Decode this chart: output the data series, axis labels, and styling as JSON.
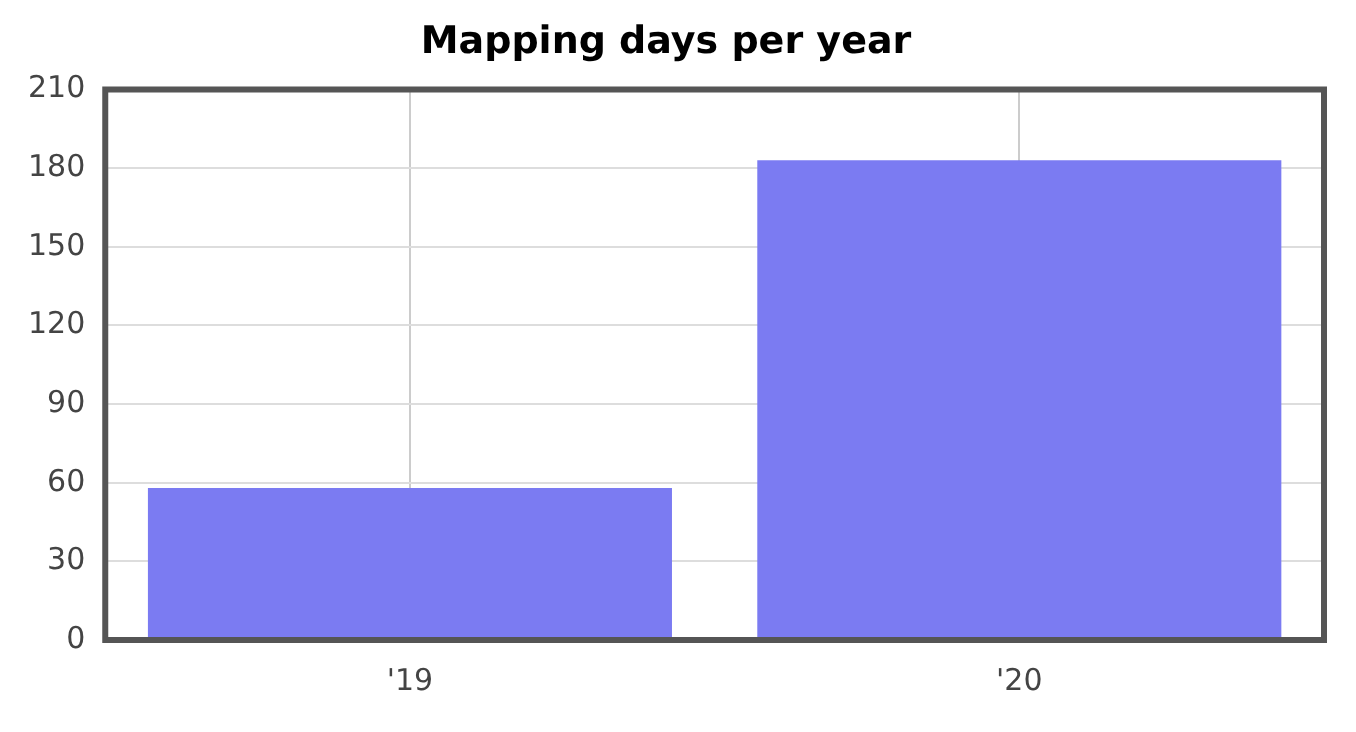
{
  "chart_data": {
    "type": "bar",
    "title": "Mapping days per year",
    "categories": [
      "'19",
      "'20"
    ],
    "values": [
      58,
      183
    ],
    "color": "#7b7bf2",
    "ylim": [
      0,
      210
    ],
    "yticks": [
      0,
      30,
      60,
      90,
      120,
      150,
      180,
      210
    ],
    "grid": true
  }
}
